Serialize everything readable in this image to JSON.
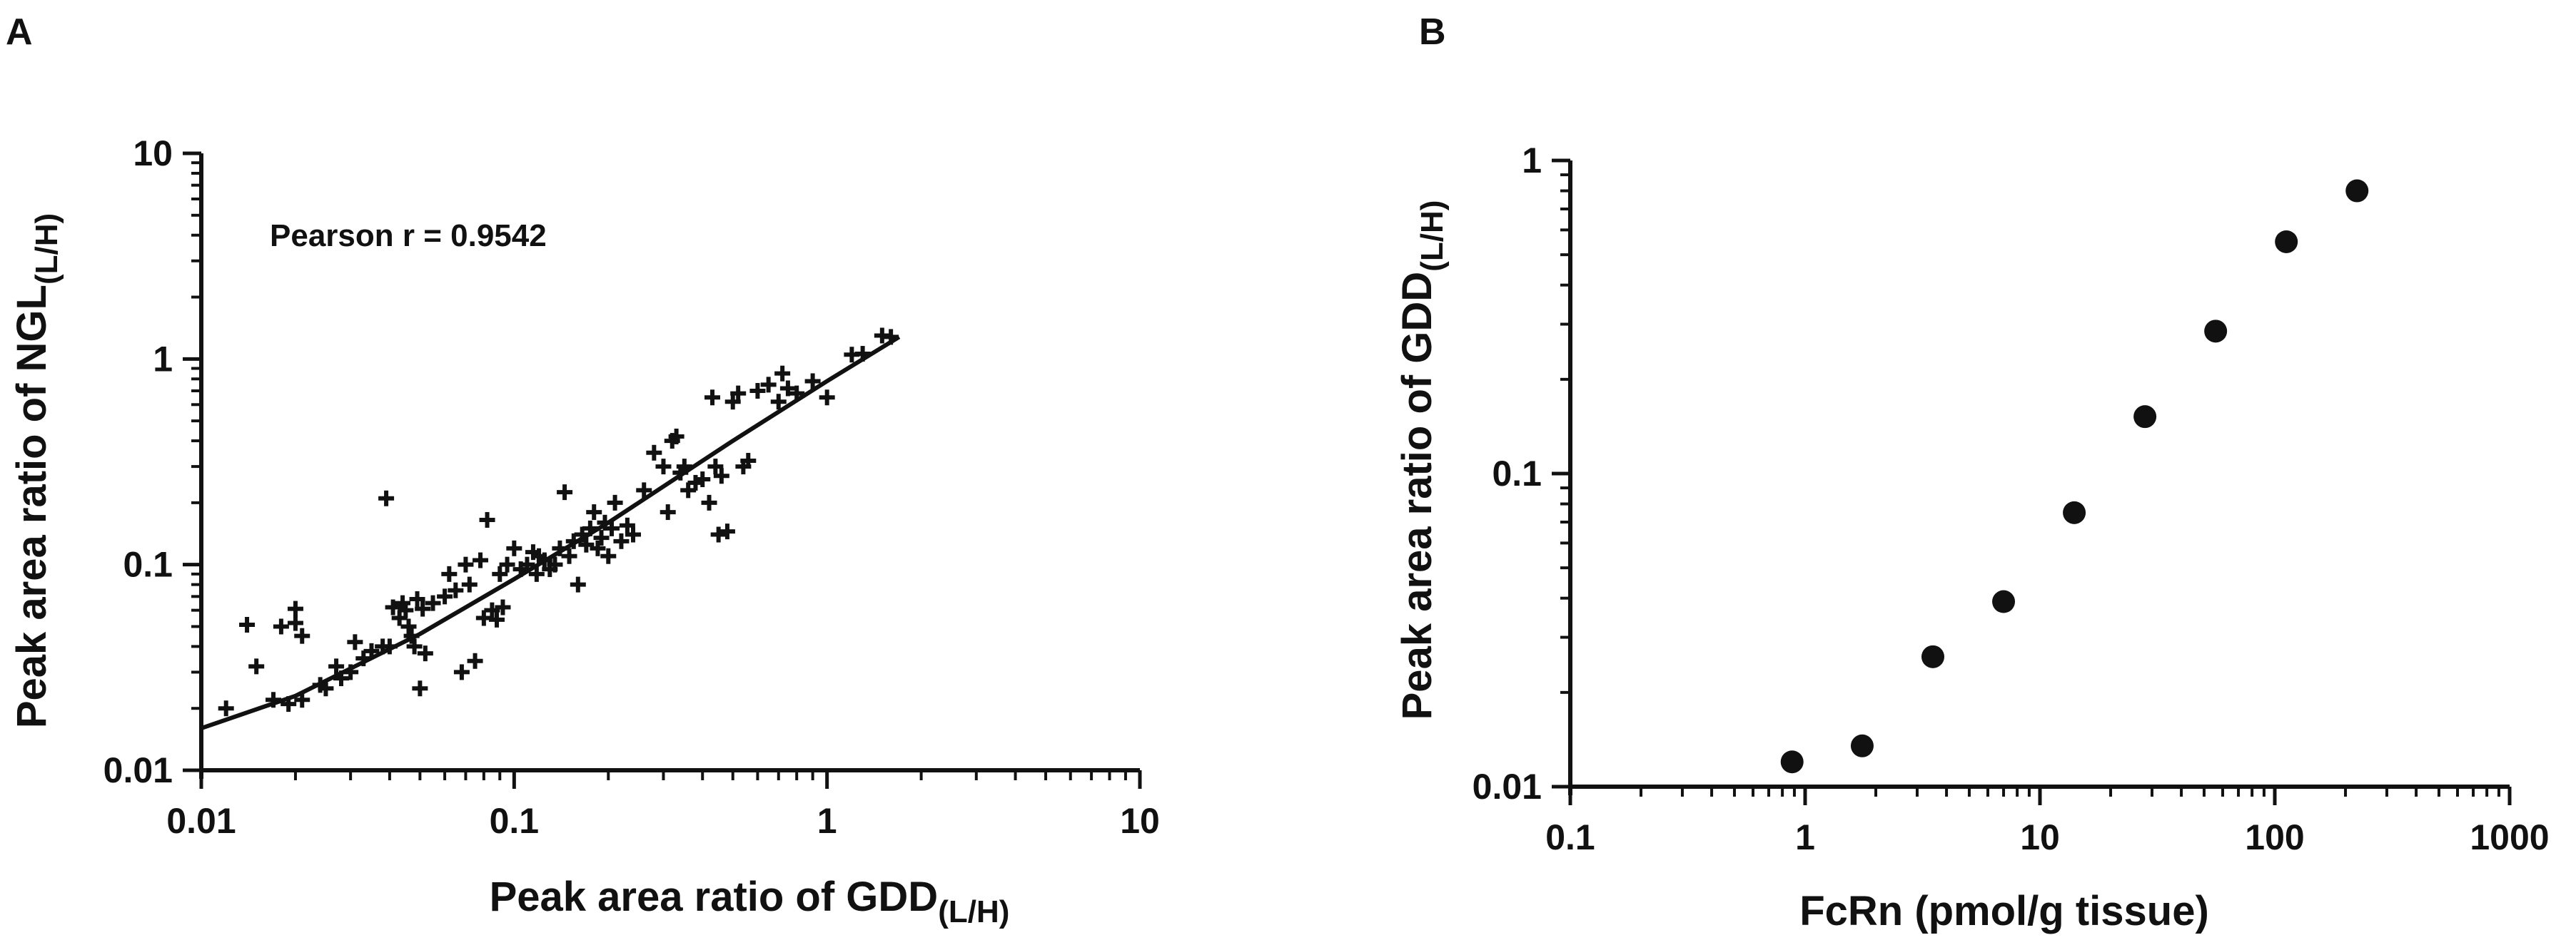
{
  "chart_data": [
    {
      "panel": "A",
      "type": "scatter",
      "xscale": "log",
      "yscale": "log",
      "xlim": [
        0.01,
        10
      ],
      "ylim": [
        0.01,
        10
      ],
      "xticks": [
        "0.01",
        "0.1",
        "1",
        "10"
      ],
      "yticks": [
        "0.01",
        "0.1",
        "1",
        "10"
      ],
      "xlabel": "Peak area ratio of GDD",
      "xlabel_sub": "(L/H)",
      "ylabel": "Peak area ratio of NGL",
      "ylabel_sub": "(L/H)",
      "annotation": "Pearson r = 0.9542",
      "marker": "plus",
      "grid": false,
      "points": [
        [
          0.012,
          0.02
        ],
        [
          0.014,
          0.051
        ],
        [
          0.015,
          0.032
        ],
        [
          0.017,
          0.022
        ],
        [
          0.018,
          0.05
        ],
        [
          0.019,
          0.021
        ],
        [
          0.02,
          0.061
        ],
        [
          0.02,
          0.052
        ],
        [
          0.021,
          0.045
        ],
        [
          0.021,
          0.022
        ],
        [
          0.024,
          0.026
        ],
        [
          0.025,
          0.025
        ],
        [
          0.027,
          0.032
        ],
        [
          0.028,
          0.028
        ],
        [
          0.03,
          0.03
        ],
        [
          0.031,
          0.042
        ],
        [
          0.033,
          0.035
        ],
        [
          0.035,
          0.038
        ],
        [
          0.038,
          0.04
        ],
        [
          0.039,
          0.21
        ],
        [
          0.04,
          0.04
        ],
        [
          0.041,
          0.062
        ],
        [
          0.043,
          0.055
        ],
        [
          0.044,
          0.065
        ],
        [
          0.045,
          0.06
        ],
        [
          0.046,
          0.05
        ],
        [
          0.047,
          0.045
        ],
        [
          0.048,
          0.04
        ],
        [
          0.049,
          0.068
        ],
        [
          0.05,
          0.025
        ],
        [
          0.051,
          0.061
        ],
        [
          0.052,
          0.037
        ],
        [
          0.055,
          0.065
        ],
        [
          0.06,
          0.07
        ],
        [
          0.062,
          0.09
        ],
        [
          0.065,
          0.075
        ],
        [
          0.068,
          0.03
        ],
        [
          0.07,
          0.1
        ],
        [
          0.072,
          0.08
        ],
        [
          0.075,
          0.034
        ],
        [
          0.078,
          0.105
        ],
        [
          0.08,
          0.055
        ],
        [
          0.082,
          0.165
        ],
        [
          0.085,
          0.06
        ],
        [
          0.088,
          0.054
        ],
        [
          0.09,
          0.09
        ],
        [
          0.092,
          0.062
        ],
        [
          0.095,
          0.1
        ],
        [
          0.1,
          0.12
        ],
        [
          0.105,
          0.095
        ],
        [
          0.11,
          0.1
        ],
        [
          0.115,
          0.115
        ],
        [
          0.118,
          0.09
        ],
        [
          0.12,
          0.11
        ],
        [
          0.125,
          0.105
        ],
        [
          0.13,
          0.095
        ],
        [
          0.135,
          0.1
        ],
        [
          0.14,
          0.12
        ],
        [
          0.145,
          0.225
        ],
        [
          0.15,
          0.11
        ],
        [
          0.155,
          0.13
        ],
        [
          0.16,
          0.08
        ],
        [
          0.165,
          0.14
        ],
        [
          0.17,
          0.125
        ],
        [
          0.175,
          0.15
        ],
        [
          0.18,
          0.18
        ],
        [
          0.185,
          0.12
        ],
        [
          0.19,
          0.135
        ],
        [
          0.195,
          0.16
        ],
        [
          0.2,
          0.11
        ],
        [
          0.205,
          0.15
        ],
        [
          0.21,
          0.2
        ],
        [
          0.22,
          0.13
        ],
        [
          0.23,
          0.155
        ],
        [
          0.24,
          0.14
        ],
        [
          0.26,
          0.23
        ],
        [
          0.28,
          0.35
        ],
        [
          0.3,
          0.3
        ],
        [
          0.31,
          0.18
        ],
        [
          0.32,
          0.4
        ],
        [
          0.33,
          0.42
        ],
        [
          0.34,
          0.28
        ],
        [
          0.35,
          0.3
        ],
        [
          0.36,
          0.23
        ],
        [
          0.38,
          0.25
        ],
        [
          0.4,
          0.26
        ],
        [
          0.42,
          0.2
        ],
        [
          0.43,
          0.65
        ],
        [
          0.44,
          0.3
        ],
        [
          0.45,
          0.14
        ],
        [
          0.46,
          0.27
        ],
        [
          0.48,
          0.145
        ],
        [
          0.5,
          0.62
        ],
        [
          0.52,
          0.68
        ],
        [
          0.54,
          0.3
        ],
        [
          0.56,
          0.32
        ],
        [
          0.6,
          0.7
        ],
        [
          0.65,
          0.75
        ],
        [
          0.7,
          0.62
        ],
        [
          0.72,
          0.85
        ],
        [
          0.75,
          0.72
        ],
        [
          0.8,
          0.68
        ],
        [
          0.9,
          0.78
        ],
        [
          1.0,
          0.65
        ],
        [
          1.2,
          1.05
        ],
        [
          1.3,
          1.06
        ],
        [
          1.5,
          1.3
        ],
        [
          1.6,
          1.28
        ]
      ],
      "fit_line": [
        [
          0.01,
          0.016
        ],
        [
          0.02,
          0.023
        ],
        [
          0.05,
          0.046
        ],
        [
          0.1,
          0.085
        ],
        [
          0.2,
          0.16
        ],
        [
          0.5,
          0.4
        ],
        [
          1.0,
          0.78
        ],
        [
          1.7,
          1.28
        ]
      ]
    },
    {
      "panel": "B",
      "type": "scatter",
      "xscale": "log",
      "yscale": "log",
      "xlim": [
        0.1,
        1000
      ],
      "ylim": [
        0.01,
        1
      ],
      "xticks": [
        "0.1",
        "1",
        "10",
        "100",
        "1000"
      ],
      "yticks": [
        "0.01",
        "0.1",
        "1"
      ],
      "xlabel": "FcRn (pmol/g tissue)",
      "ylabel": "Peak area ratio of GDD",
      "ylabel_sub": "(L/H)",
      "marker": "circle",
      "grid": false,
      "x": [
        0.88,
        1.75,
        3.5,
        7.0,
        14.0,
        28.0,
        56.0,
        112.0,
        224.0
      ],
      "y": [
        0.012,
        0.0135,
        0.026,
        0.039,
        0.075,
        0.152,
        0.285,
        0.55,
        0.8
      ]
    }
  ]
}
